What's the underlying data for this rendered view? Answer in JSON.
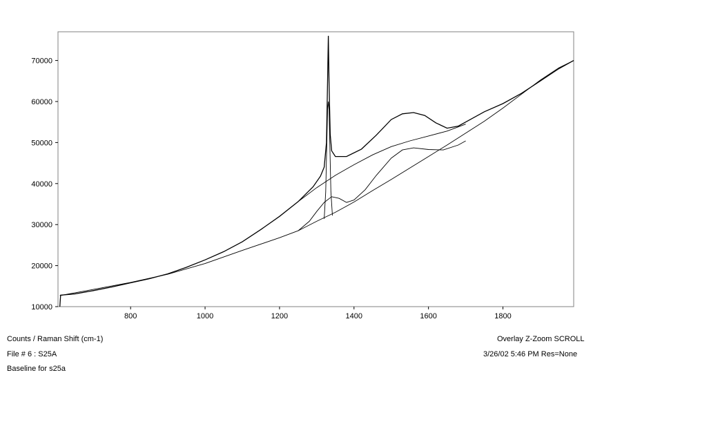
{
  "chart_data": {
    "type": "line",
    "xlim": [
      605,
      1990
    ],
    "ylim": [
      10000,
      77000
    ],
    "x_ticks": [
      800,
      1000,
      1200,
      1400,
      1600,
      1800
    ],
    "y_ticks": [
      10000,
      20000,
      30000,
      40000,
      50000,
      60000,
      70000
    ],
    "grid": false,
    "series": [
      {
        "role": "measured spectrum",
        "points": [
          [
            610,
            10000
          ],
          [
            612,
            12800
          ],
          [
            650,
            13100
          ],
          [
            700,
            13900
          ],
          [
            750,
            14800
          ],
          [
            800,
            15800
          ],
          [
            850,
            16800
          ],
          [
            900,
            18000
          ],
          [
            950,
            19600
          ],
          [
            1000,
            21400
          ],
          [
            1050,
            23400
          ],
          [
            1100,
            25800
          ],
          [
            1150,
            28800
          ],
          [
            1200,
            32000
          ],
          [
            1250,
            35600
          ],
          [
            1290,
            39200
          ],
          [
            1310,
            41800
          ],
          [
            1320,
            44000
          ],
          [
            1326,
            50000
          ],
          [
            1329,
            65000
          ],
          [
            1331,
            76000
          ],
          [
            1333,
            65000
          ],
          [
            1336,
            52000
          ],
          [
            1340,
            48000
          ],
          [
            1350,
            46600
          ],
          [
            1380,
            46600
          ],
          [
            1420,
            48400
          ],
          [
            1460,
            51800
          ],
          [
            1500,
            55600
          ],
          [
            1530,
            57000
          ],
          [
            1560,
            57300
          ],
          [
            1590,
            56600
          ],
          [
            1620,
            54800
          ],
          [
            1650,
            53500
          ],
          [
            1680,
            54000
          ],
          [
            1700,
            55000
          ],
          [
            1750,
            57500
          ],
          [
            1800,
            59500
          ],
          [
            1850,
            62000
          ],
          [
            1900,
            65000
          ],
          [
            1950,
            68000
          ],
          [
            1990,
            70000
          ]
        ]
      },
      {
        "role": "baseline",
        "points": [
          [
            610,
            12700
          ],
          [
            700,
            14200
          ],
          [
            800,
            15900
          ],
          [
            900,
            17900
          ],
          [
            1000,
            20500
          ],
          [
            1100,
            23700
          ],
          [
            1200,
            26800
          ],
          [
            1250,
            28500
          ],
          [
            1300,
            30800
          ],
          [
            1350,
            33000
          ],
          [
            1400,
            35500
          ],
          [
            1450,
            38300
          ],
          [
            1500,
            41000
          ],
          [
            1550,
            43800
          ],
          [
            1600,
            46600
          ],
          [
            1650,
            49400
          ],
          [
            1700,
            52300
          ],
          [
            1750,
            55200
          ],
          [
            1800,
            58400
          ],
          [
            1850,
            61800
          ],
          [
            1900,
            65200
          ],
          [
            1950,
            68200
          ],
          [
            1990,
            70000
          ]
        ]
      },
      {
        "role": "fitted envelope",
        "points": [
          [
            1250,
            35600
          ],
          [
            1300,
            39000
          ],
          [
            1350,
            42000
          ],
          [
            1400,
            44600
          ],
          [
            1450,
            47000
          ],
          [
            1500,
            49000
          ],
          [
            1550,
            50400
          ],
          [
            1600,
            51600
          ],
          [
            1650,
            52800
          ],
          [
            1700,
            54500
          ]
        ]
      },
      {
        "role": "fitted D band",
        "points": [
          [
            1250,
            28500
          ],
          [
            1280,
            30800
          ],
          [
            1300,
            33200
          ],
          [
            1320,
            35400
          ],
          [
            1340,
            36800
          ],
          [
            1360,
            36400
          ],
          [
            1380,
            35400
          ],
          [
            1400,
            36000
          ],
          [
            1430,
            38500
          ],
          [
            1460,
            42000
          ],
          [
            1500,
            46200
          ],
          [
            1530,
            48200
          ],
          [
            1560,
            48700
          ],
          [
            1600,
            48300
          ],
          [
            1640,
            48200
          ],
          [
            1680,
            49400
          ],
          [
            1700,
            50400
          ]
        ]
      },
      {
        "role": "fitted diamond peak",
        "points": [
          [
            1320,
            31400
          ],
          [
            1324,
            38000
          ],
          [
            1327,
            50000
          ],
          [
            1329,
            58000
          ],
          [
            1331,
            60000
          ],
          [
            1333,
            58000
          ],
          [
            1335,
            50000
          ],
          [
            1338,
            38000
          ],
          [
            1342,
            32200
          ]
        ]
      }
    ]
  },
  "footer": {
    "units_label": "Counts / Raman Shift (cm-1)",
    "file_label": "File # 6 : S25A",
    "note": "Baseline for s25a",
    "mode": "Overlay Z-Zoom SCROLL",
    "timestamp": "3/26/02  5:46 PM  Res=None"
  }
}
